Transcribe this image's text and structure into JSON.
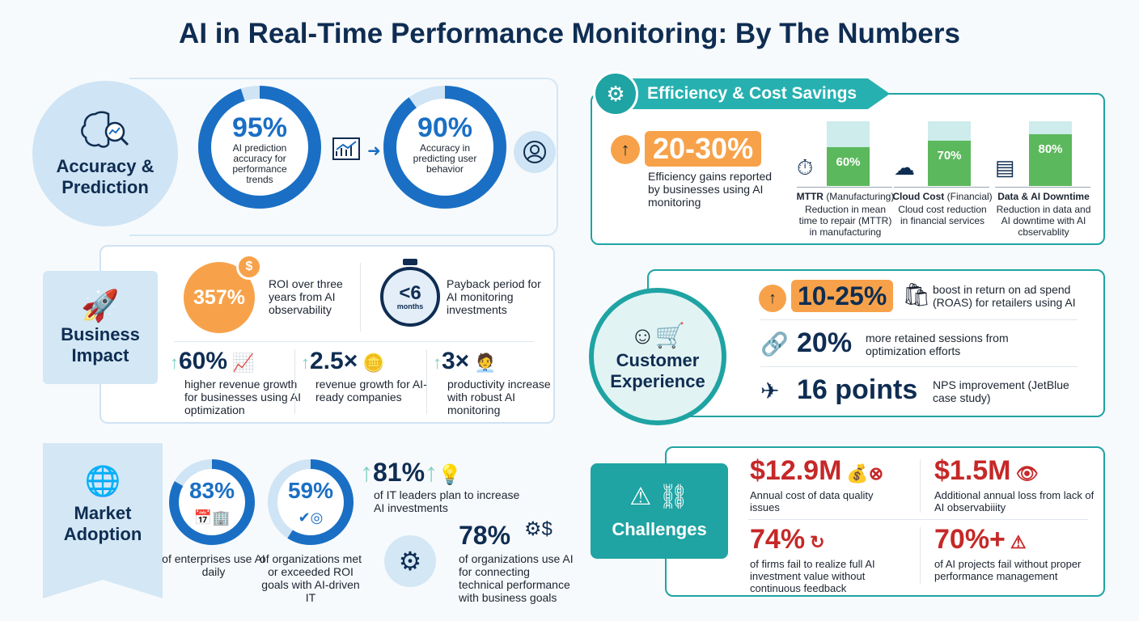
{
  "title": "AI in Real-Time Performance Monitoring: By The Numbers",
  "accuracy": {
    "label": "Accuracy & Prediction",
    "rings": [
      {
        "value": "95%",
        "percent": 95,
        "text": "AI prediction accuracy for performance trends"
      },
      {
        "value": "90%",
        "percent": 90,
        "text": "Accuracy in predicting user behavior"
      }
    ]
  },
  "efficiency": {
    "header": "Efficiency & Cost Savings",
    "main_value": "20-30%",
    "main_text": "Efficiency gains reported by businesses using AI monitoring",
    "bars": [
      {
        "value": "60%",
        "percent": 60,
        "title": "MTTR",
        "title_sub": "(Manufacturing)",
        "text": "Reduction in mean time to repair (MTTR) in manufacturing",
        "icon": "clock-wrench-icon"
      },
      {
        "value": "70%",
        "percent": 70,
        "title": "Cloud Cost",
        "title_sub": "(Financial)",
        "text": "Cloud cost reduction in financial services",
        "icon": "cloud-dollar-icon"
      },
      {
        "value": "80%",
        "percent": 80,
        "title": "Data & AI Downtime",
        "title_sub": "",
        "text": "Reduction in data and AI downtime with AI cbservablity",
        "icon": "server-warning-icon"
      }
    ],
    "colors": {
      "teal": "#27b0b0",
      "orange": "#f7a24a",
      "green": "#5cb85c",
      "bar_bg": "#cdeceb"
    }
  },
  "business": {
    "label": "Business Impact",
    "roi_value": "357%",
    "roi_text": "ROI over three years from AI observability",
    "payback_value": "<6",
    "payback_unit": "months",
    "payback_text": "Payback period for AI monitoring investments",
    "stats": [
      {
        "value": "60%",
        "text": "higher revenue growth for businesses using AI optimization"
      },
      {
        "value": "2.5×",
        "text": "revenue growth for AI-ready companies"
      },
      {
        "value": "3×",
        "text": "productivity increase with robust AI monitoring"
      }
    ]
  },
  "customer": {
    "label": "Customer Experience",
    "stats": [
      {
        "value": "10-25%",
        "text": "boost in return on ad spend (ROAS) for retailers using AI"
      },
      {
        "value": "20%",
        "text": "more retained sessions from optimization efforts"
      },
      {
        "value": "16 points",
        "text": "NPS improvement (JetBlue case study)"
      }
    ]
  },
  "market": {
    "label": "Market Adoption",
    "rings": [
      {
        "value": "83%",
        "percent": 83,
        "text": "of enterprises use AI daily"
      },
      {
        "value": "59%",
        "percent": 59,
        "text": "of organizations met or exceeded ROI goals with AI-driven IT"
      }
    ],
    "stats": [
      {
        "value": "81%",
        "text": "of IT leaders plan to increase AI investments"
      },
      {
        "value": "78%",
        "text": "of organizations use AI for connecting technical performance with business goals"
      }
    ]
  },
  "challenges": {
    "label": "Challenges",
    "stats": [
      {
        "value": "$12.9M",
        "text": "Annual cost of data quality issues"
      },
      {
        "value": "$1.5M",
        "text": "Additional annual loss from lack of AI observabiiity"
      },
      {
        "value": "74%",
        "text": "of firms fail to realize full AI investment value without continuous feedback"
      },
      {
        "value": "70%+",
        "text": "of AI projects fail without proper performance management"
      }
    ]
  }
}
